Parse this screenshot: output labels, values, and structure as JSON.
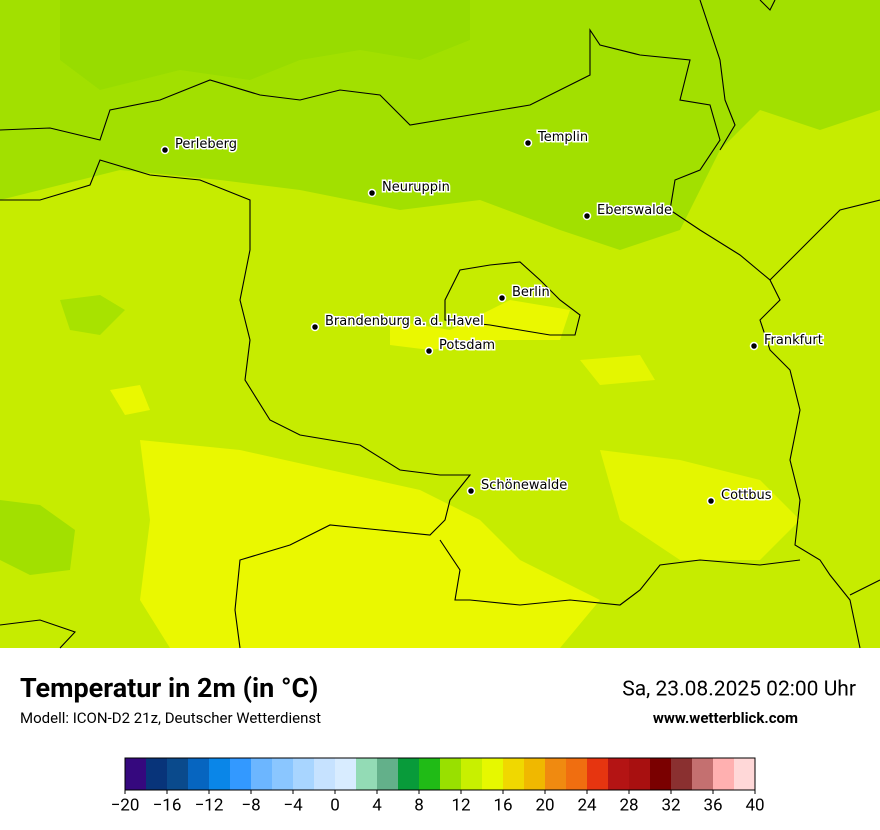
{
  "map": {
    "cities": [
      {
        "name": "Perleberg"
      },
      {
        "name": "Templin"
      },
      {
        "name": "Neuruppin"
      },
      {
        "name": "Eberswalde"
      },
      {
        "name": "Berlin"
      },
      {
        "name": "Brandenburg a. d. Havel"
      },
      {
        "name": "Potsdam"
      },
      {
        "name": "Frankfurt"
      },
      {
        "name": "Schönewalde"
      },
      {
        "name": "Cottbus"
      }
    ]
  },
  "footer": {
    "title": "Temperatur in 2m (in °C)",
    "subtitle": "Modell: ICON-D2 21z, Deutscher Wetterdienst",
    "datetime": "Sa, 23.08.2025 02:00 Uhr",
    "website": "www.wetterblick.com"
  },
  "colorbar": {
    "lim": [
      -20,
      40
    ],
    "colors": [
      "#35087e",
      "#08347a",
      "#0a4a8c",
      "#0665c0",
      "#0a86e8",
      "#3399ff",
      "#6cb6ff",
      "#8ac6ff",
      "#a8d5ff",
      "#c6e2ff",
      "#d8ecff",
      "#93dbb5",
      "#63b08a",
      "#089b3a",
      "#20bb16",
      "#99e000",
      "#c8f000",
      "#e6f800",
      "#f0d800",
      "#f0b800",
      "#f08a10",
      "#f06e10",
      "#e63510",
      "#b41414",
      "#a81010",
      "#7a0000",
      "#8a3030",
      "#c47070",
      "#ffb0b0",
      "#ffd8d8"
    ],
    "ticks": [
      {
        "value": -20,
        "label": "−20"
      },
      {
        "value": -16,
        "label": "−16"
      },
      {
        "value": -12,
        "label": "−12"
      },
      {
        "value": -8,
        "label": "−8"
      },
      {
        "value": -4,
        "label": "−4"
      },
      0,
      4,
      8,
      12,
      16,
      20,
      24,
      28,
      32,
      36,
      40
    ]
  }
}
